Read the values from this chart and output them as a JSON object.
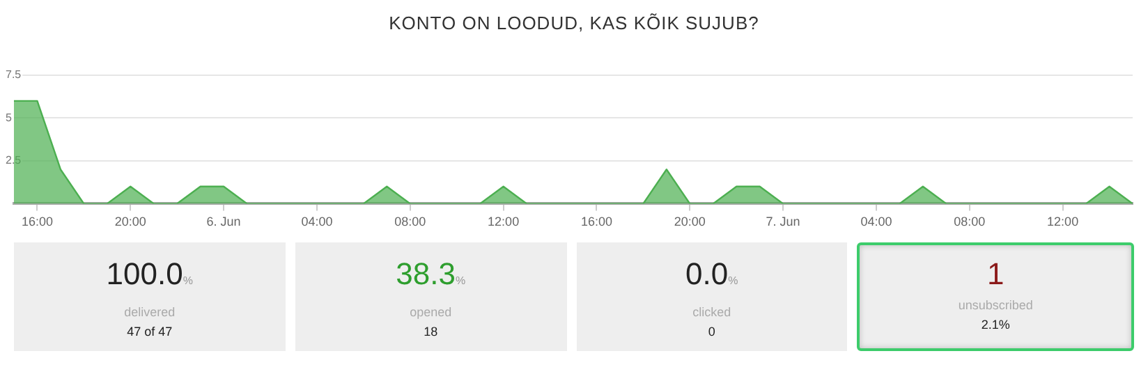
{
  "chart_data": [
    {
      "type": "area",
      "title": "KONTO ON LOODUD, KAS KÕIK SUJUB?",
      "x": [
        "--06-05T15:00",
        "--06-05T16:00",
        "--06-05T17:00",
        "--06-05T18:00",
        "--06-05T19:00",
        "--06-05T20:00",
        "--06-05T21:00",
        "--06-05T22:00",
        "--06-05T23:00",
        "--06-06T00:00",
        "--06-06T01:00",
        "--06-06T02:00",
        "--06-06T03:00",
        "--06-06T04:00",
        "--06-06T05:00",
        "--06-06T06:00",
        "--06-06T07:00",
        "--06-06T08:00",
        "--06-06T09:00",
        "--06-06T10:00",
        "--06-06T11:00",
        "--06-06T12:00",
        "--06-06T13:00",
        "--06-06T14:00",
        "--06-06T15:00",
        "--06-06T16:00",
        "--06-06T17:00",
        "--06-06T18:00",
        "--06-06T19:00",
        "--06-06T20:00",
        "--06-06T21:00",
        "--06-06T22:00",
        "--06-06T23:00",
        "--06-07T00:00",
        "--06-07T01:00",
        "--06-07T02:00",
        "--06-07T03:00",
        "--06-07T04:00",
        "--06-07T05:00",
        "--06-07T06:00",
        "--06-07T07:00",
        "--06-07T08:00",
        "--06-07T09:00",
        "--06-07T10:00",
        "--06-07T11:00",
        "--06-07T12:00",
        "--06-07T13:00",
        "--06-07T14:00",
        "--06-07T15:00"
      ],
      "series": [
        {
          "color": "#4caf50",
          "values": [
            6,
            6,
            2,
            0,
            0,
            1,
            0,
            0,
            1,
            1,
            0,
            0,
            0,
            0,
            0,
            0,
            1,
            0,
            0,
            0,
            0,
            1,
            0,
            0,
            0,
            0,
            0,
            0,
            2,
            0,
            0,
            1,
            1,
            0,
            0,
            0,
            0,
            0,
            0,
            1,
            0,
            0,
            0,
            0,
            0,
            0,
            0,
            1,
            0
          ]
        }
      ],
      "xlim": [
        "--06-05T15:00",
        "--06-07T15:00"
      ],
      "xticks": [
        {
          "value": "--06-05T16:00",
          "label": "16:00"
        },
        {
          "value": "--06-05T20:00",
          "label": "20:00"
        },
        {
          "value": "--06-06T00:00",
          "label": "6. Jun"
        },
        {
          "value": "--06-06T04:00",
          "label": "04:00"
        },
        {
          "value": "--06-06T08:00",
          "label": "08:00"
        },
        {
          "value": "--06-06T12:00",
          "label": "12:00"
        },
        {
          "value": "--06-06T16:00",
          "label": "16:00"
        },
        {
          "value": "--06-06T20:00",
          "label": "20:00"
        },
        {
          "value": "--06-07T00:00",
          "label": "7. Jun"
        },
        {
          "value": "--06-07T04:00",
          "label": "04:00"
        },
        {
          "value": "--06-07T08:00",
          "label": "08:00"
        },
        {
          "value": "--06-07T12:00",
          "label": "12:00"
        }
      ],
      "ylim": [
        0,
        7.5
      ],
      "yticks": [
        {
          "value": 0,
          "label": null
        },
        2.5,
        5,
        7.5
      ],
      "grid": "y",
      "legend": false,
      "marker": "none",
      "line_style": "solid"
    },
    {
      "type": "other",
      "categories": [
        "delivered",
        "opened",
        "clicked",
        "unsubscribed"
      ],
      "value_labels": [
        "100.0%",
        "38.3%",
        "0.0%",
        "1"
      ],
      "annotations": [
        "47 of 47",
        "18",
        "0",
        "2.1%"
      ]
    }
  ]
}
